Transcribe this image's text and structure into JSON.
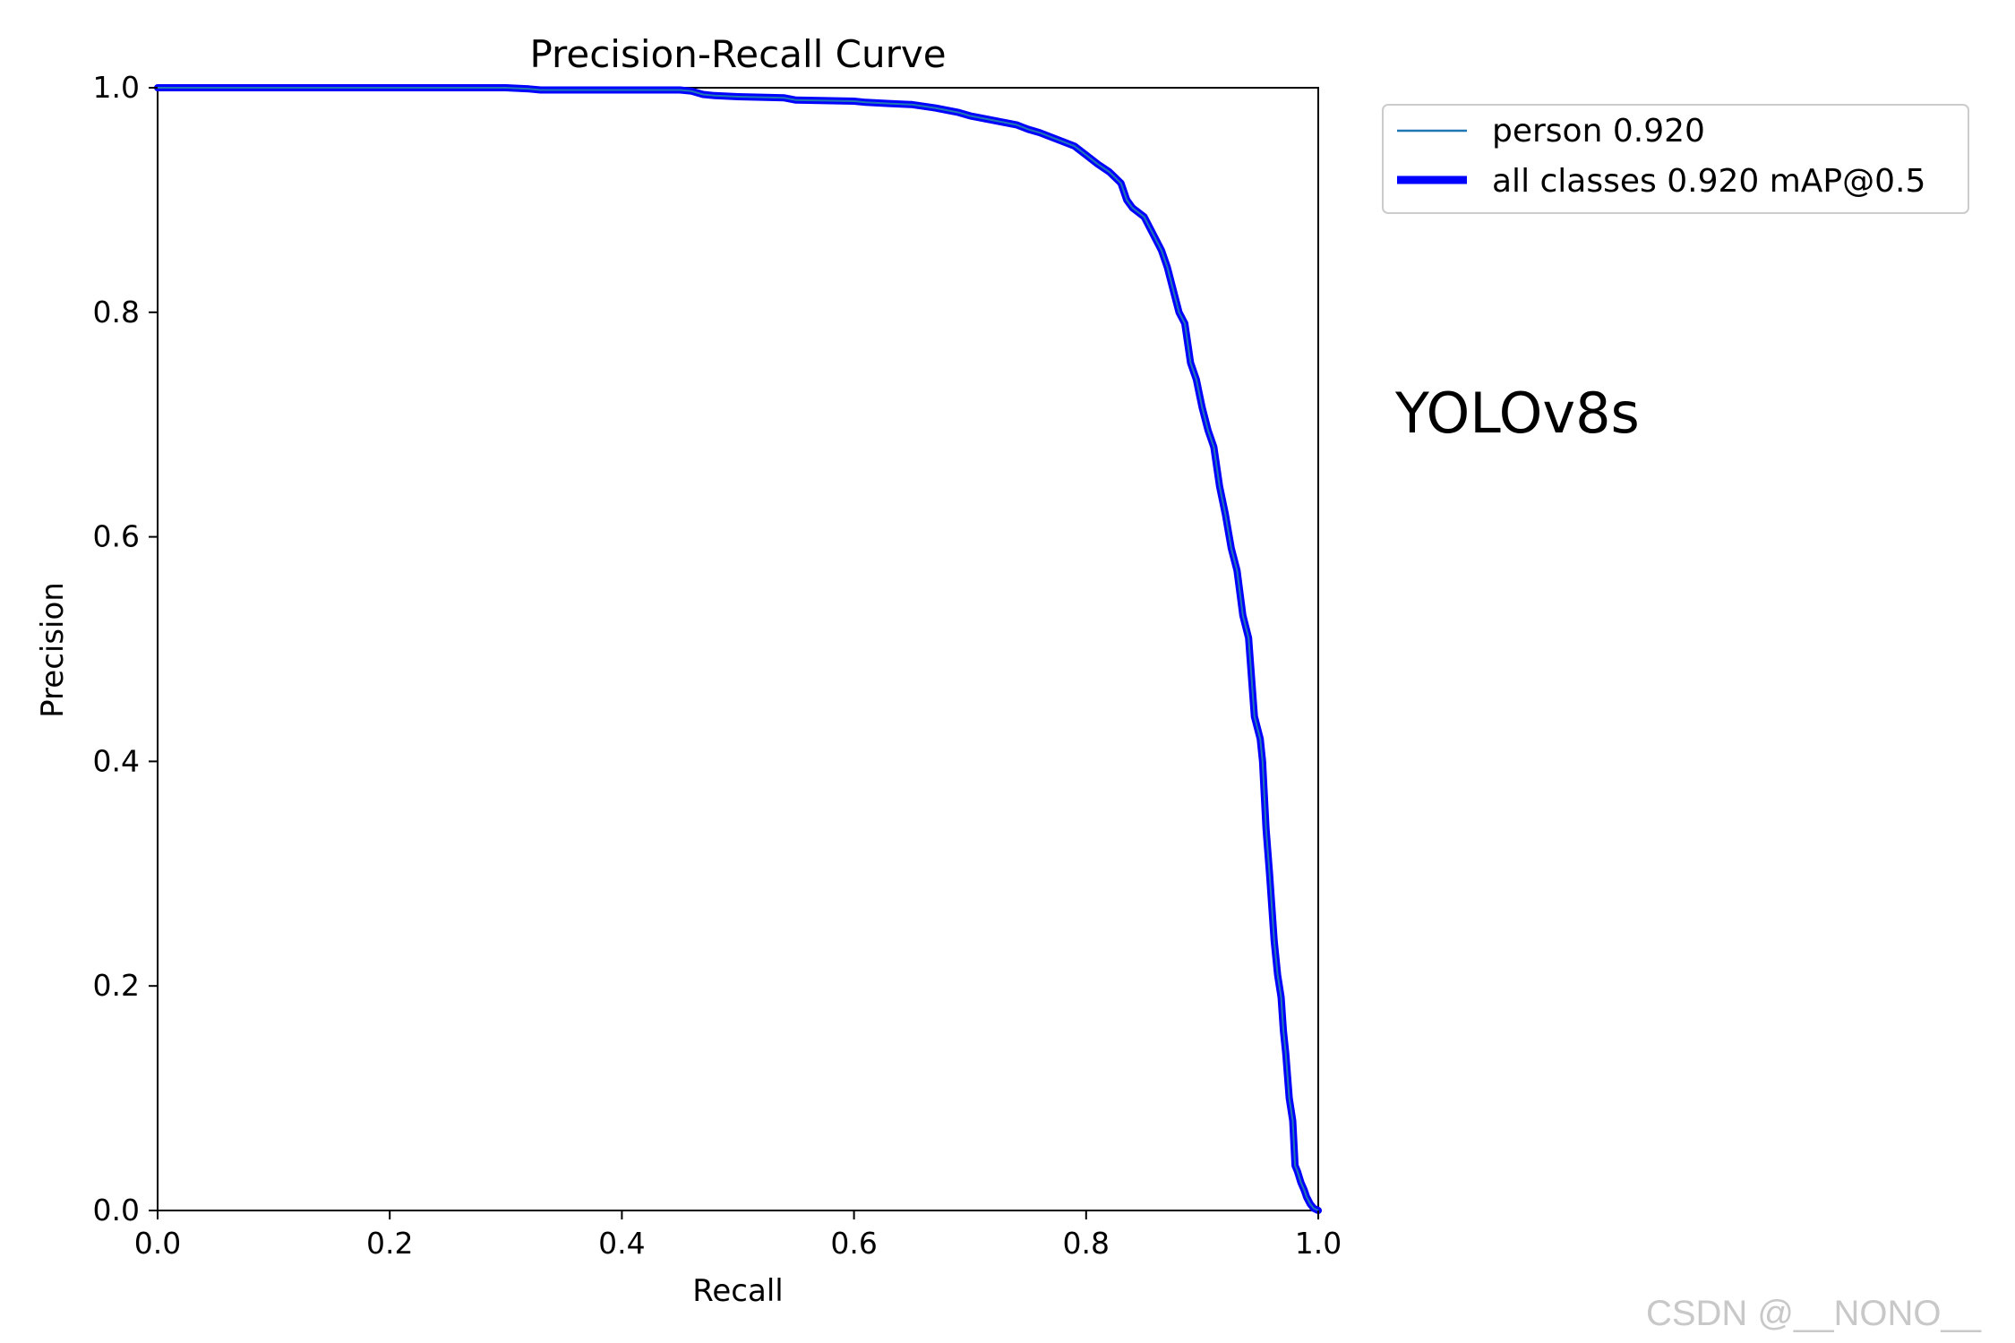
{
  "chart_data": {
    "type": "line",
    "title": "Precision-Recall Curve",
    "xlabel": "Recall",
    "ylabel": "Precision",
    "xlim": [
      0,
      1
    ],
    "ylim": [
      0,
      1
    ],
    "xticks": [
      "0.0",
      "0.2",
      "0.4",
      "0.6",
      "0.8",
      "1.0"
    ],
    "yticks": [
      "0.0",
      "0.2",
      "0.4",
      "0.6",
      "0.8",
      "1.0"
    ],
    "grid": false,
    "legend_position": "outside-top-right",
    "series": [
      {
        "name": "person 0.920",
        "color": "#1f77b4",
        "width": "thin",
        "x": [
          0.0,
          0.1,
          0.2,
          0.3,
          0.32,
          0.33,
          0.45,
          0.46,
          0.47,
          0.48,
          0.5,
          0.54,
          0.55,
          0.6,
          0.61,
          0.63,
          0.65,
          0.67,
          0.69,
          0.7,
          0.72,
          0.74,
          0.75,
          0.76,
          0.77,
          0.78,
          0.79,
          0.8,
          0.81,
          0.82,
          0.825,
          0.83,
          0.835,
          0.84,
          0.85,
          0.86,
          0.865,
          0.87,
          0.875,
          0.88,
          0.885,
          0.89,
          0.895,
          0.898,
          0.9,
          0.905,
          0.91,
          0.915,
          0.92,
          0.925,
          0.93,
          0.935,
          0.94,
          0.945,
          0.95,
          0.952,
          0.955,
          0.958,
          0.96,
          0.962,
          0.965,
          0.968,
          0.97,
          0.972,
          0.975,
          0.978,
          0.98,
          0.982,
          0.985,
          0.988,
          0.99,
          0.993,
          0.996,
          1.0
        ],
        "y": [
          1.0,
          1.0,
          1.0,
          1.0,
          0.999,
          0.998,
          0.998,
          0.997,
          0.994,
          0.993,
          0.992,
          0.991,
          0.989,
          0.988,
          0.987,
          0.986,
          0.985,
          0.982,
          0.978,
          0.975,
          0.971,
          0.967,
          0.963,
          0.96,
          0.956,
          0.952,
          0.948,
          0.94,
          0.932,
          0.925,
          0.92,
          0.915,
          0.9,
          0.893,
          0.885,
          0.865,
          0.855,
          0.84,
          0.82,
          0.8,
          0.79,
          0.755,
          0.74,
          0.725,
          0.715,
          0.695,
          0.68,
          0.645,
          0.62,
          0.59,
          0.57,
          0.53,
          0.51,
          0.44,
          0.42,
          0.4,
          0.34,
          0.3,
          0.27,
          0.24,
          0.21,
          0.19,
          0.16,
          0.14,
          0.1,
          0.08,
          0.04,
          0.035,
          0.025,
          0.018,
          0.012,
          0.006,
          0.002,
          0.0
        ]
      },
      {
        "name": "all classes 0.920 mAP@0.5",
        "color": "#0000ff",
        "width": "thick",
        "same_as_series": 0
      }
    ],
    "annotation": "YOLOv8s"
  },
  "watermark": "CSDN @__NONO__"
}
